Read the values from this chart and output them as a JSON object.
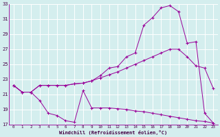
{
  "xlabel": "Windchill (Refroidissement éolien,°C)",
  "bg_color": "#d4eeee",
  "line_color": "#990099",
  "grid_color": "#ffffff",
  "xlim": [
    -0.5,
    23.5
  ],
  "ylim": [
    17,
    33
  ],
  "yticks": [
    17,
    19,
    21,
    23,
    25,
    27,
    29,
    31,
    33
  ],
  "xticks": [
    0,
    1,
    2,
    3,
    4,
    5,
    6,
    7,
    8,
    9,
    10,
    11,
    12,
    13,
    14,
    15,
    16,
    17,
    18,
    19,
    20,
    21,
    22,
    23
  ],
  "curve1_x": [
    0,
    1,
    2,
    3,
    4,
    5,
    6,
    7,
    8,
    9,
    10,
    11,
    12,
    13,
    14,
    15,
    16,
    17,
    18,
    19,
    20,
    21,
    22,
    23
  ],
  "curve1_y": [
    22.2,
    21.3,
    21.3,
    22.2,
    22.2,
    22.2,
    22.2,
    22.4,
    22.5,
    22.8,
    23.2,
    23.6,
    24.0,
    24.5,
    25.0,
    25.5,
    26.0,
    26.5,
    27.0,
    27.0,
    26.0,
    24.8,
    24.5,
    21.8
  ],
  "curve2_x": [
    0,
    1,
    2,
    3,
    4,
    5,
    6,
    7,
    8,
    9,
    10,
    11,
    12,
    13,
    14,
    15,
    16,
    17,
    18,
    19,
    20,
    21,
    22,
    23
  ],
  "curve2_y": [
    22.2,
    21.3,
    21.3,
    22.2,
    22.2,
    22.2,
    22.2,
    22.4,
    22.5,
    22.8,
    23.5,
    24.5,
    24.7,
    26.0,
    26.5,
    30.2,
    31.2,
    32.5,
    32.8,
    32.0,
    27.8,
    28.0,
    18.5,
    17.2
  ],
  "curve3_x": [
    0,
    1,
    2,
    3,
    4,
    5,
    6,
    7,
    8,
    9,
    10,
    11,
    12,
    13,
    14,
    15,
    16,
    17,
    18,
    19,
    20,
    21,
    22,
    23
  ],
  "curve3_y": [
    22.2,
    21.3,
    21.3,
    20.2,
    18.5,
    18.2,
    17.5,
    17.3,
    21.5,
    19.2,
    19.2,
    19.2,
    19.1,
    19.0,
    18.8,
    18.7,
    18.5,
    18.3,
    18.1,
    17.9,
    17.7,
    17.5,
    17.4,
    17.2
  ]
}
